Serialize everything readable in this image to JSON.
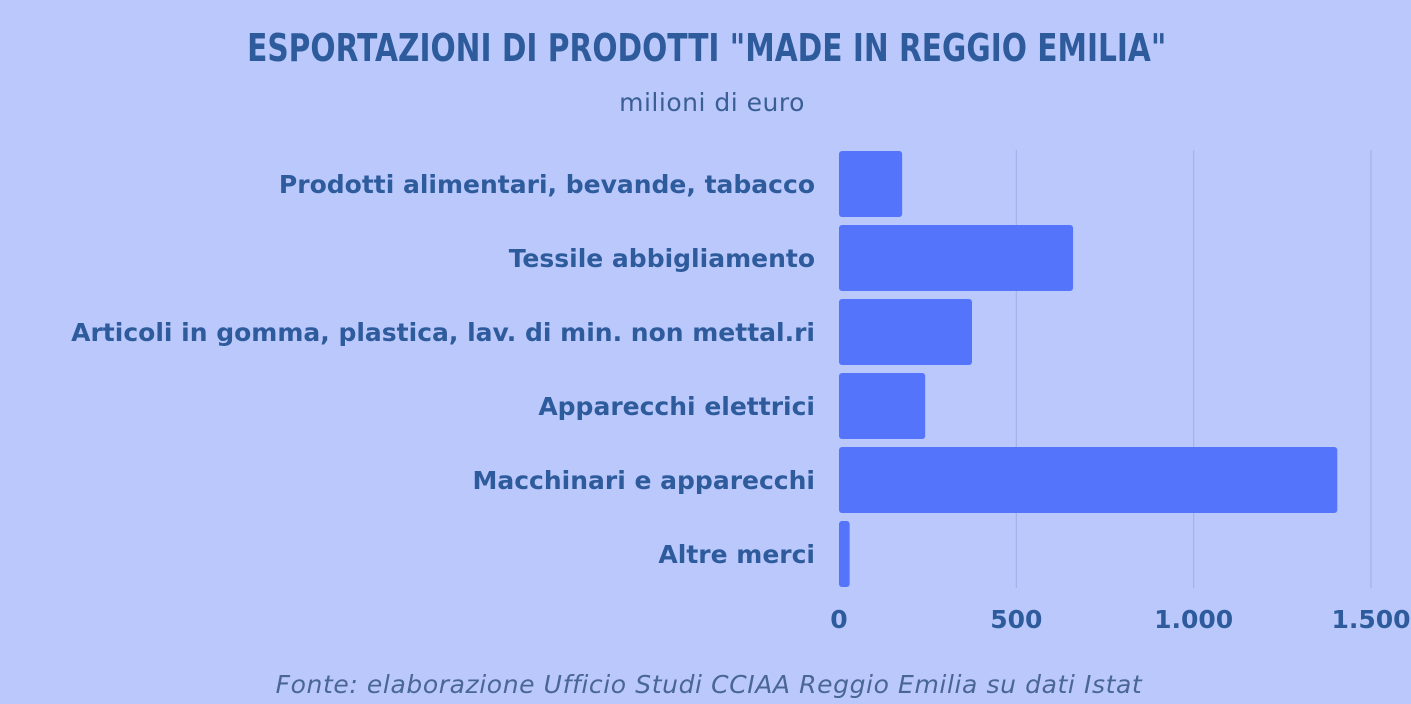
{
  "chart_data": {
    "type": "bar",
    "orientation": "horizontal",
    "title": "ESPORTAZIONI DI PRODOTTI \"MADE IN REGGIO EMILIA\"",
    "subtitle": "milioni di euro",
    "categories": [
      "Prodotti alimentari, bevande, tabacco",
      "Tessile abbigliamento",
      "Articoli in gomma, plastica, lav. di min. non mettal.ri",
      "Apparecchi elettrici",
      "Macchinari e apparecchi",
      "Altre merci"
    ],
    "values": [
      178,
      660,
      375,
      243,
      1405,
      30
    ],
    "xlim": [
      0,
      1500
    ],
    "x_ticks": [
      0,
      500,
      1000,
      1500
    ],
    "x_tick_labels": [
      "0",
      "500",
      "1.000",
      "1.500"
    ],
    "xlabel": "",
    "ylabel": "",
    "grid": "vertical",
    "legend": "none",
    "source": "Fonte: elaborazione Ufficio Studi CCIAA Reggio Emilia su dati Istat"
  },
  "colors": {
    "background": "#bac8fc",
    "bar": "#5574fc",
    "text": "#2e5b9c",
    "gridline": "#a2b2e6"
  }
}
